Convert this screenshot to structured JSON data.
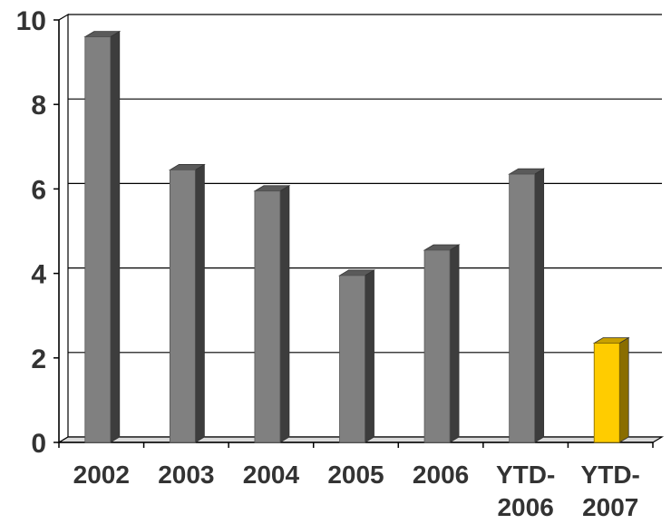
{
  "chart_data": {
    "type": "bar",
    "categories": [
      "2002",
      "2003",
      "2004",
      "2005",
      "2006",
      "YTD-2006",
      "YTD-2007"
    ],
    "category_label_lines": [
      [
        "2002"
      ],
      [
        "2003"
      ],
      [
        "2004"
      ],
      [
        "2005"
      ],
      [
        "2006"
      ],
      [
        "YTD-",
        "2006"
      ],
      [
        "YTD-",
        "2007"
      ]
    ],
    "values": [
      9.6,
      6.45,
      5.95,
      3.95,
      4.55,
      6.35,
      2.35
    ],
    "ylim": [
      0,
      10
    ],
    "yticks": [
      0,
      2,
      4,
      6,
      8,
      10
    ],
    "title": "",
    "xlabel": "",
    "ylabel": "",
    "grid": true,
    "style": "3d-column",
    "colors": {
      "default_bar": "#808080",
      "default_bar_side": "#3d3d3d",
      "default_bar_top": "#5a5a5a",
      "highlight_bar": "#ffcc00",
      "highlight_bar_side": "#8a6d00",
      "highlight_bar_top": "#c9a000",
      "gridline": "#000000",
      "label": "#333333"
    },
    "highlight_index": 6
  }
}
